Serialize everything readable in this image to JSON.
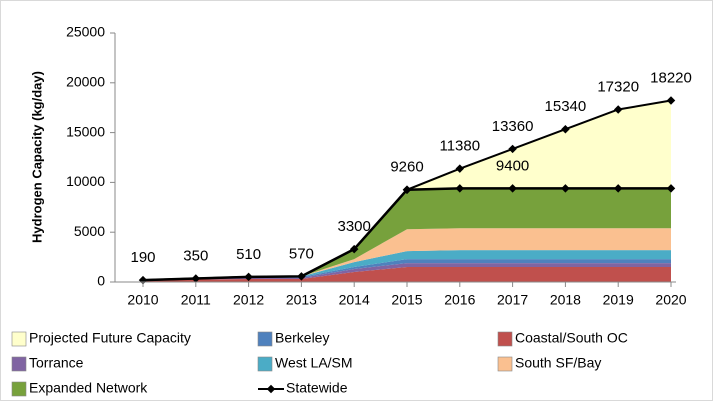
{
  "chart_data": {
    "type": "stacked_area_line",
    "ylabel": "Hydrogen Capacity (kg/day)",
    "categories": [
      "2010",
      "2011",
      "2012",
      "2013",
      "2014",
      "2015",
      "2016",
      "2017",
      "2018",
      "2019",
      "2020"
    ],
    "ylim": [
      0,
      25000
    ],
    "yticks": [
      0,
      5000,
      10000,
      15000,
      20000,
      25000
    ],
    "grid": false,
    "legend": "bottom",
    "series": [
      {
        "name": "Projected Future Capacity",
        "color": "#ffffcc",
        "kind": "area",
        "values": [
          0,
          0,
          0,
          0,
          0,
          0,
          1980,
          3960,
          5940,
          7920,
          8820
        ]
      },
      {
        "name": "Berkeley",
        "color": "#4f81bd",
        "kind": "area",
        "values": [
          0,
          0,
          100,
          100,
          200,
          400,
          400,
          400,
          400,
          400,
          400
        ]
      },
      {
        "name": "Coastal/South OC",
        "color": "#c0504d",
        "kind": "area",
        "values": [
          190,
          250,
          300,
          300,
          1000,
          1500,
          1500,
          1500,
          1500,
          1500,
          1500
        ]
      },
      {
        "name": "Torrance",
        "color": "#8064a2",
        "kind": "area",
        "values": [
          0,
          100,
          110,
          120,
          300,
          400,
          400,
          400,
          400,
          400,
          400
        ]
      },
      {
        "name": "West LA/SM",
        "color": "#4bacc6",
        "kind": "area",
        "values": [
          0,
          0,
          0,
          50,
          500,
          800,
          900,
          900,
          900,
          900,
          900
        ]
      },
      {
        "name": "South SF/Bay",
        "color": "#fac090",
        "kind": "area",
        "values": [
          0,
          0,
          0,
          0,
          300,
          2200,
          2200,
          2200,
          2200,
          2200,
          2200
        ]
      },
      {
        "name": "Expanded Network",
        "color": "#77a13c",
        "kind": "area",
        "values": [
          0,
          0,
          0,
          0,
          1000,
          3960,
          4000,
          4000,
          4000,
          4000,
          4000
        ]
      },
      {
        "name": "Statewide",
        "color": "#000000",
        "kind": "line",
        "values": [
          190,
          350,
          510,
          570,
          3300,
          9260,
          11380,
          13360,
          15340,
          17320,
          18220
        ]
      }
    ],
    "annotations": [
      {
        "text": "9400",
        "x": "2017",
        "y": 9400
      }
    ]
  }
}
